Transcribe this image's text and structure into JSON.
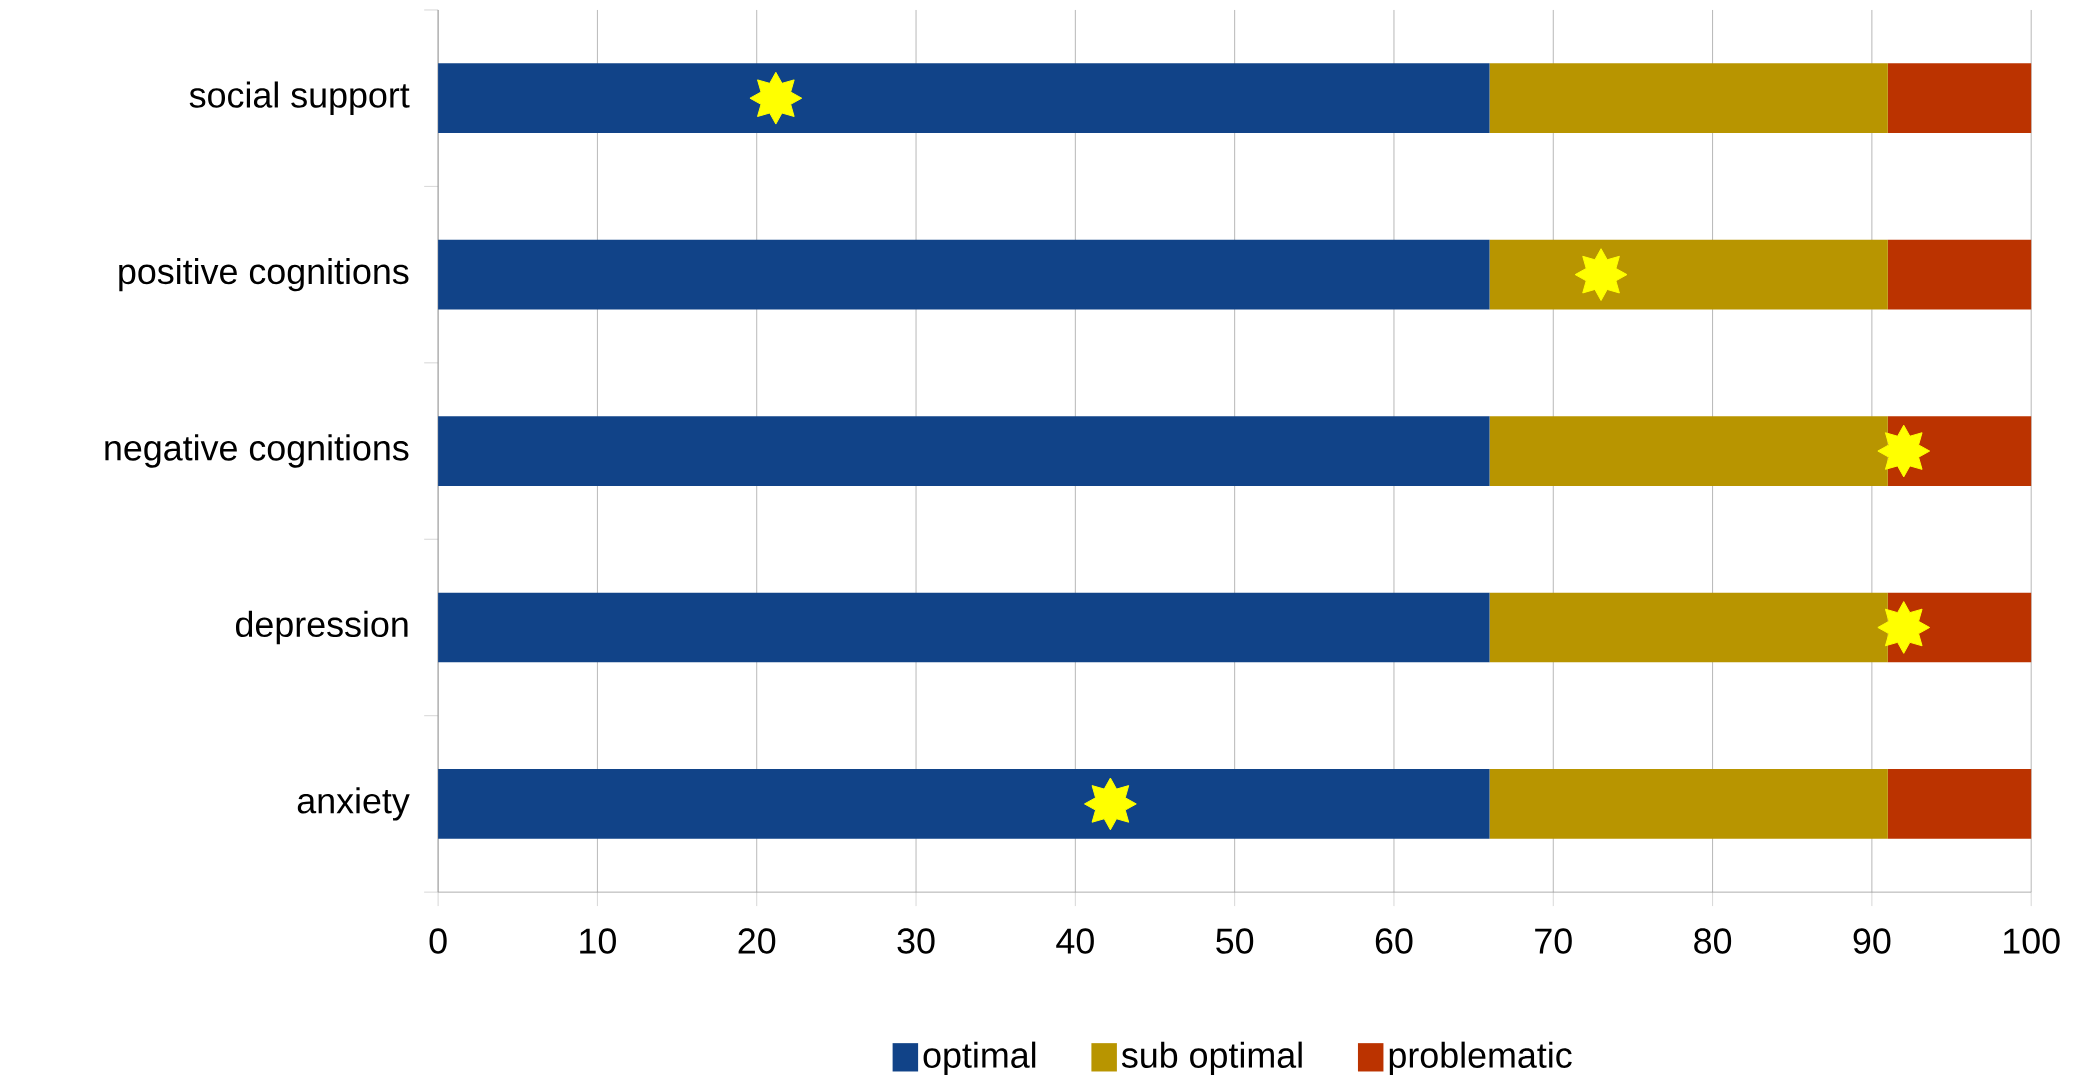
{
  "chart_data": {
    "type": "bar",
    "orientation": "horizontal",
    "stacked": true,
    "categories": [
      "social support",
      "positive cognitions",
      "negative cognitions",
      "depression",
      "anxiety"
    ],
    "series": [
      {
        "name": "optimal",
        "color": "#114388",
        "values": [
          66,
          66,
          66,
          66,
          66
        ]
      },
      {
        "name": "sub optimal",
        "color": "#b89500",
        "values": [
          25,
          25,
          25,
          25,
          25
        ]
      },
      {
        "name": "problematic",
        "color": "#bb3300",
        "values": [
          9,
          9,
          9,
          9,
          9
        ]
      },
      {
        "type": "scatter",
        "color": "#ffff00",
        "marker": "star",
        "values": [
          21.2,
          73,
          92,
          92,
          42.2
        ]
      }
    ],
    "xlim": [
      0,
      100
    ],
    "xticks": [
      0,
      10,
      20,
      30,
      40,
      50,
      60,
      70,
      80,
      90,
      100
    ],
    "grid": "x",
    "legend": "bottom"
  }
}
